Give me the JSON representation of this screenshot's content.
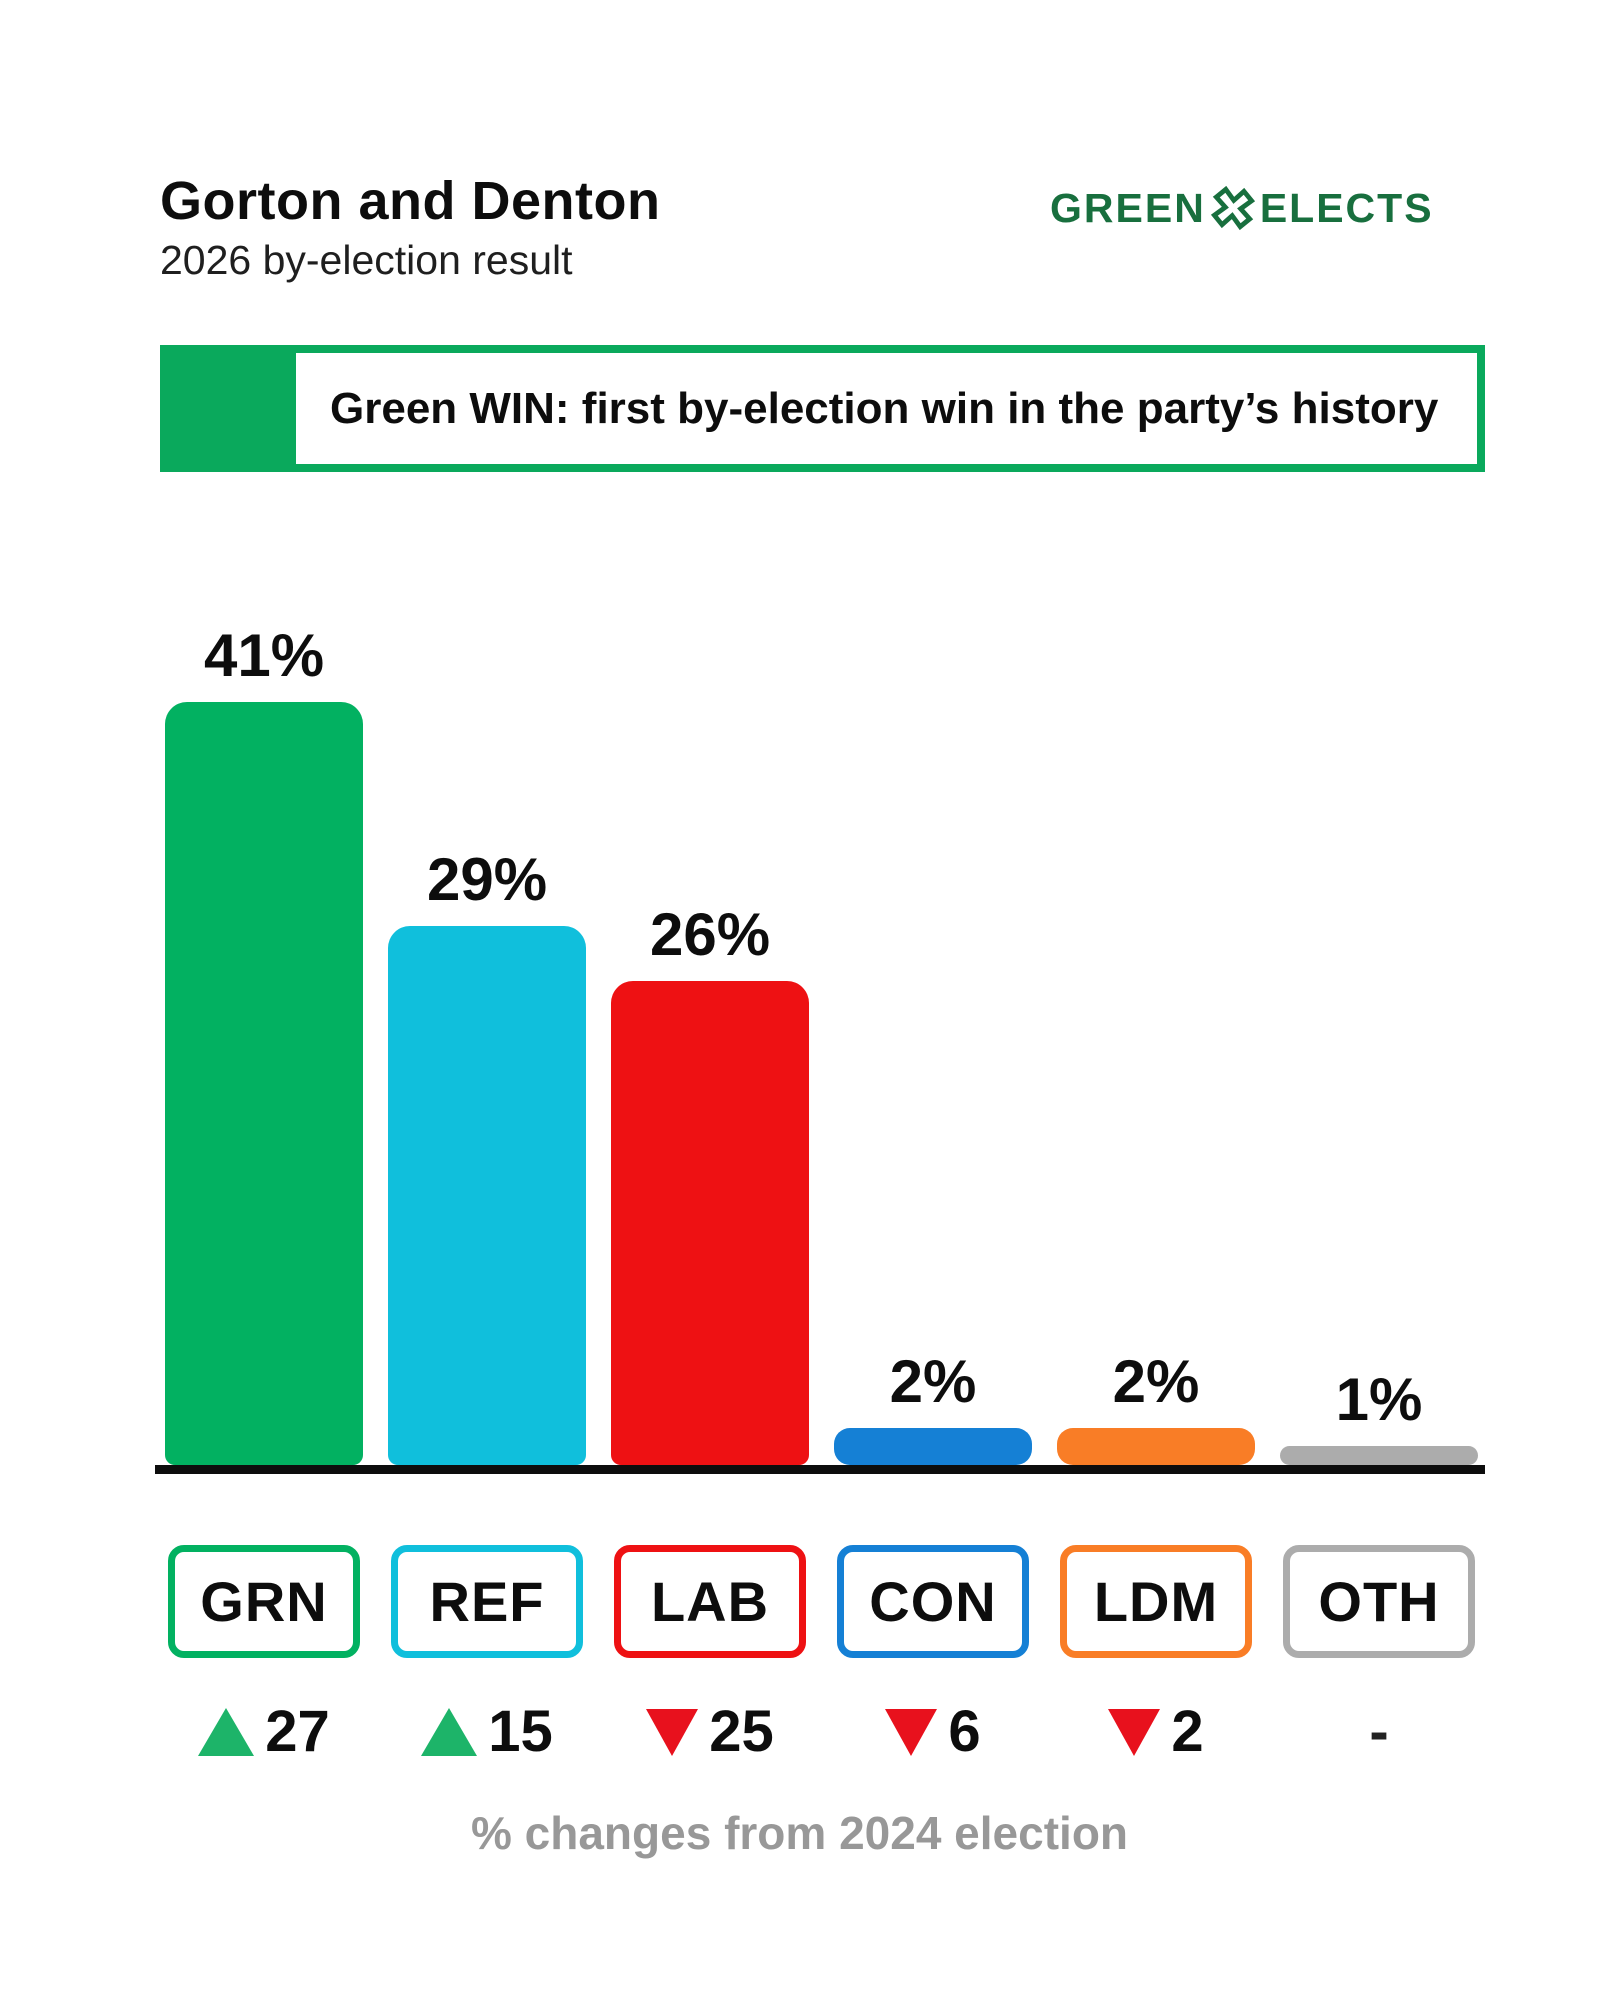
{
  "header": {
    "title": "Gorton and Denton",
    "subtitle": "2026 by-election result",
    "logo": {
      "left": "GREEN",
      "right": "ELECTS",
      "icon": "ballot-x-icon",
      "color": "#186f3e"
    }
  },
  "banner": {
    "text": "Green WIN: first by-election win in the party’s history",
    "accent_color": "#0aa95c"
  },
  "chart_data": {
    "type": "bar",
    "title": "Gorton and Denton — 2026 by-election result",
    "categories": [
      "GRN",
      "REF",
      "LAB",
      "CON",
      "LDM",
      "OTH"
    ],
    "values": [
      41,
      29,
      26,
      2,
      2,
      1
    ],
    "value_labels": [
      "41%",
      "29%",
      "26%",
      "2%",
      "2%",
      "1%"
    ],
    "bar_colors": [
      "#02b161",
      "#10bfdc",
      "#ee1113",
      "#1580d5",
      "#f97d26",
      "#acacac"
    ],
    "changes": [
      {
        "direction": "up",
        "value": "27"
      },
      {
        "direction": "up",
        "value": "15"
      },
      {
        "direction": "down",
        "value": "25"
      },
      {
        "direction": "down",
        "value": "6"
      },
      {
        "direction": "down",
        "value": "2"
      },
      {
        "direction": "none",
        "value": "-"
      }
    ],
    "up_color": "#1db469",
    "down_color": "#e8111d",
    "xlabel": "",
    "ylabel": "",
    "ylim": [
      0,
      45
    ],
    "grid": false,
    "legend_position": "below-as-outlined-boxes",
    "caption": "% changes from 2024 election"
  },
  "footer": {
    "caption": "% changes from 2024 election"
  }
}
